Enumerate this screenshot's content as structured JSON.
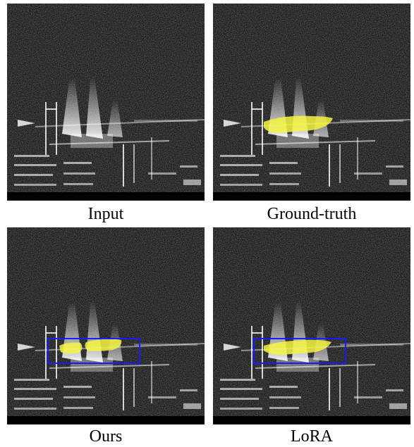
{
  "panels": [
    {
      "id": "input",
      "caption": "Input",
      "mask": "none",
      "box": false
    },
    {
      "id": "ground_truth",
      "caption": "Ground-truth",
      "mask": "solid",
      "box": false
    },
    {
      "id": "ours",
      "caption": "Ours",
      "mask": "split",
      "box": true
    },
    {
      "id": "lora",
      "caption": "LoRA",
      "mask": "solid",
      "box": true
    }
  ],
  "colors": {
    "background": "#000000",
    "mask": "#f5f542",
    "box": "#1a1aff",
    "caption": "#000000"
  }
}
